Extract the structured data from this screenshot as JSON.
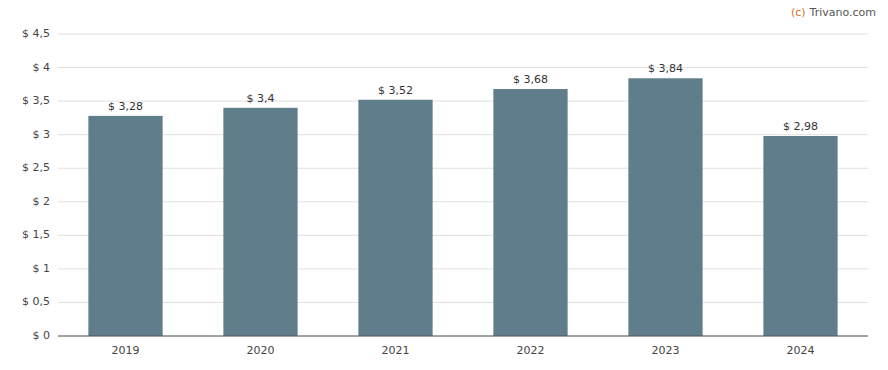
{
  "chart_data": {
    "type": "bar",
    "categories": [
      "2019",
      "2020",
      "2021",
      "2022",
      "2023",
      "2024"
    ],
    "values": [
      3.28,
      3.4,
      3.52,
      3.68,
      3.84,
      2.98
    ],
    "value_labels": [
      "$ 3,28",
      "$ 3,4",
      "$ 3,52",
      "$ 3,68",
      "$ 3,84",
      "$ 2,98"
    ],
    "data_labels": true,
    "color": "#607d8b",
    "ylim": [
      0,
      4.5
    ],
    "yticks": [
      {
        "value": 0,
        "label": "$ 0"
      },
      {
        "value": 0.5,
        "label": "$ 0,5"
      },
      {
        "value": 1.0,
        "label": "$ 1"
      },
      {
        "value": 1.5,
        "label": "$ 1,5"
      },
      {
        "value": 2.0,
        "label": "$ 2"
      },
      {
        "value": 2.5,
        "label": "$ 2,5"
      },
      {
        "value": 3.0,
        "label": "$ 3"
      },
      {
        "value": 3.5,
        "label": "$ 3,5"
      },
      {
        "value": 4.0,
        "label": "$ 4"
      },
      {
        "value": 4.5,
        "label": "$ 4,5"
      }
    ],
    "grid": true,
    "annotations": [
      {
        "text": "(c)",
        "color": "#e07020"
      },
      {
        "text": "Trivano.com",
        "color": "#555555"
      }
    ]
  }
}
